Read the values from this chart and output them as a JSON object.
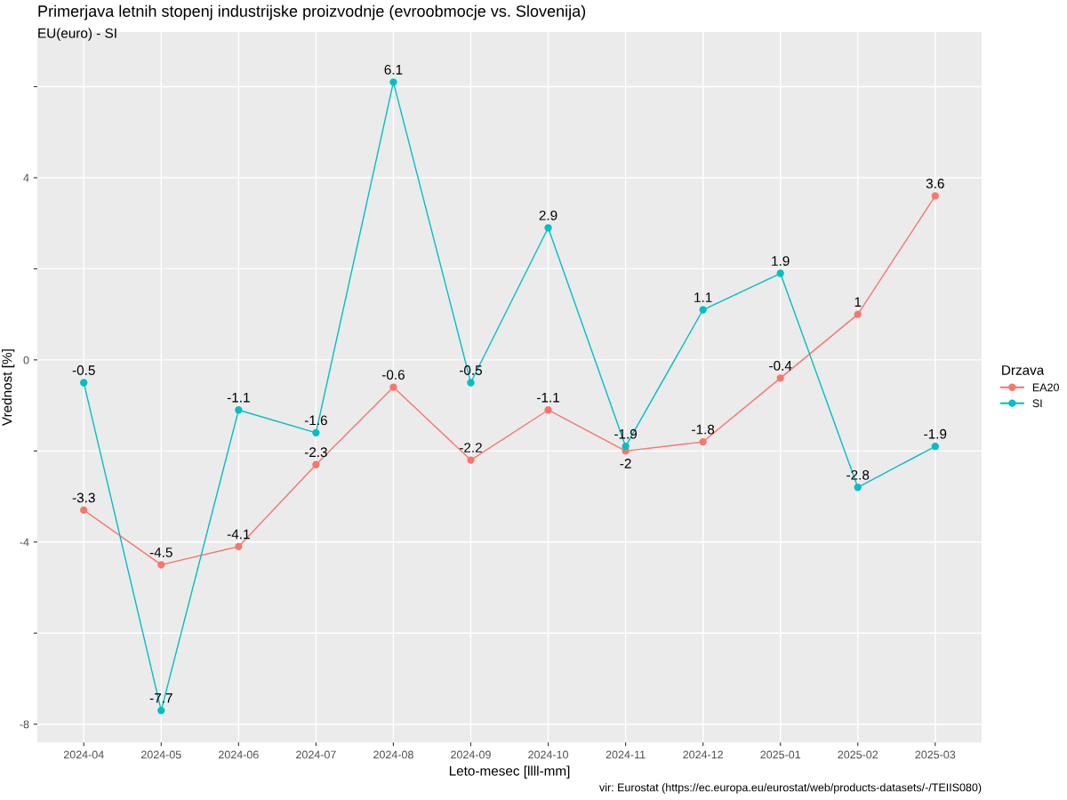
{
  "chart_data": {
    "type": "line",
    "title": "Primerjava letnih stopenj industrijske proizvodnje (evroobmocje vs. Slovenija)",
    "subtitle": "EU(euro) - SI",
    "xlabel": "Leto-mesec [llll-mm]",
    "ylabel": "Vrednost [%]",
    "legend_title": "Drzava",
    "categories": [
      "2024-04",
      "2024-05",
      "2024-06",
      "2024-07",
      "2024-08",
      "2024-09",
      "2024-10",
      "2024-11",
      "2024-12",
      "2025-01",
      "2025-02",
      "2025-03"
    ],
    "series": [
      {
        "name": "EA20",
        "color": "#f8766d",
        "values": [
          -3.3,
          -4.5,
          -4.1,
          -2.3,
          -0.6,
          -2.2,
          -1.1,
          -2,
          -1.8,
          -0.4,
          1,
          3.6
        ]
      },
      {
        "name": "SI",
        "color": "#00bfc4",
        "values": [
          -0.5,
          -7.7,
          -1.1,
          -1.6,
          6.1,
          -0.5,
          2.9,
          -1.9,
          1.1,
          1.9,
          -2.8,
          -1.9
        ]
      }
    ],
    "ylim": [
      -8.4,
      7.2
    ],
    "yticks": [
      -8,
      {
        "value": -6,
        "label": null
      },
      -4,
      {
        "value": -2,
        "label": null
      },
      0,
      {
        "value": 2,
        "label": null
      },
      4,
      {
        "value": 6,
        "label": null
      }
    ],
    "grid": true,
    "legend": "right",
    "marker": "circle",
    "line_style": "solid",
    "data_labels": true,
    "annotations": [
      "vir: Eurostat (https://ec.europa.eu/eurostat/web/products-datasets/-/TEIIS080)"
    ]
  }
}
